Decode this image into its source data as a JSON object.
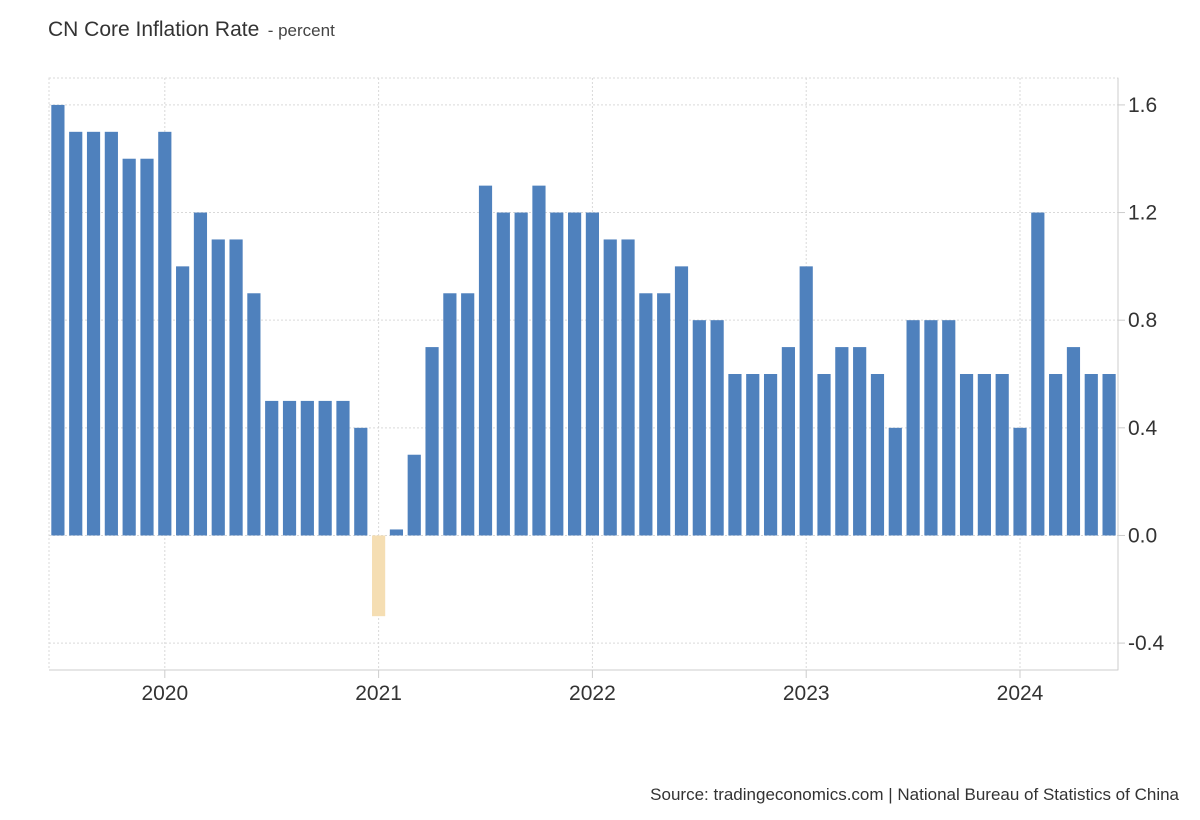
{
  "chart_data": {
    "type": "bar",
    "title": "CN Core Inflation Rate",
    "unit": "- percent",
    "source": "Source: tradingeconomics.com | National Bureau of Statistics of China",
    "ylim": [
      -0.5,
      1.7
    ],
    "yticks": [
      1.6,
      1.2,
      0.8,
      0.4,
      0.0,
      -0.4
    ],
    "ytick_labels": [
      "1.6",
      "1.2",
      "0.8",
      "0.4",
      "0.0",
      "-0.4"
    ],
    "xticks": [
      "2020",
      "2021",
      "2022",
      "2023",
      "2024"
    ],
    "colors": {
      "positive": "#4f81bd",
      "negative": "#f5deb3",
      "grid": "#d9d9d9",
      "axis": "#cccccc"
    },
    "grid": true,
    "categories": [
      "2019-07",
      "2019-08",
      "2019-09",
      "2019-10",
      "2019-11",
      "2019-12",
      "2020-01",
      "2020-02",
      "2020-03",
      "2020-04",
      "2020-05",
      "2020-06",
      "2020-07",
      "2020-08",
      "2020-09",
      "2020-10",
      "2020-11",
      "2020-12",
      "2021-01",
      "2021-02",
      "2021-03",
      "2021-04",
      "2021-05",
      "2021-06",
      "2021-07",
      "2021-08",
      "2021-09",
      "2021-10",
      "2021-11",
      "2021-12",
      "2022-01",
      "2022-02",
      "2022-03",
      "2022-04",
      "2022-05",
      "2022-06",
      "2022-07",
      "2022-08",
      "2022-09",
      "2022-10",
      "2022-11",
      "2022-12",
      "2023-01",
      "2023-02",
      "2023-03",
      "2023-04",
      "2023-05",
      "2023-06",
      "2023-07",
      "2023-08",
      "2023-09",
      "2023-10",
      "2023-11",
      "2023-12",
      "2024-01",
      "2024-02",
      "2024-03",
      "2024-04",
      "2024-05",
      "2024-06"
    ],
    "values": [
      1.6,
      1.5,
      1.5,
      1.5,
      1.4,
      1.4,
      1.5,
      1.0,
      1.2,
      1.1,
      1.1,
      0.9,
      0.5,
      0.5,
      0.5,
      0.5,
      0.5,
      0.4,
      -0.3,
      0.0,
      0.3,
      0.7,
      0.9,
      0.9,
      1.3,
      1.2,
      1.2,
      1.3,
      1.2,
      1.2,
      1.2,
      1.1,
      1.1,
      0.9,
      0.9,
      1.0,
      0.8,
      0.8,
      0.6,
      0.6,
      0.6,
      0.7,
      1.0,
      0.6,
      0.7,
      0.7,
      0.6,
      0.4,
      0.8,
      0.8,
      0.8,
      0.6,
      0.6,
      0.6,
      0.4,
      1.2,
      0.6,
      0.7,
      0.6,
      0.6
    ]
  }
}
